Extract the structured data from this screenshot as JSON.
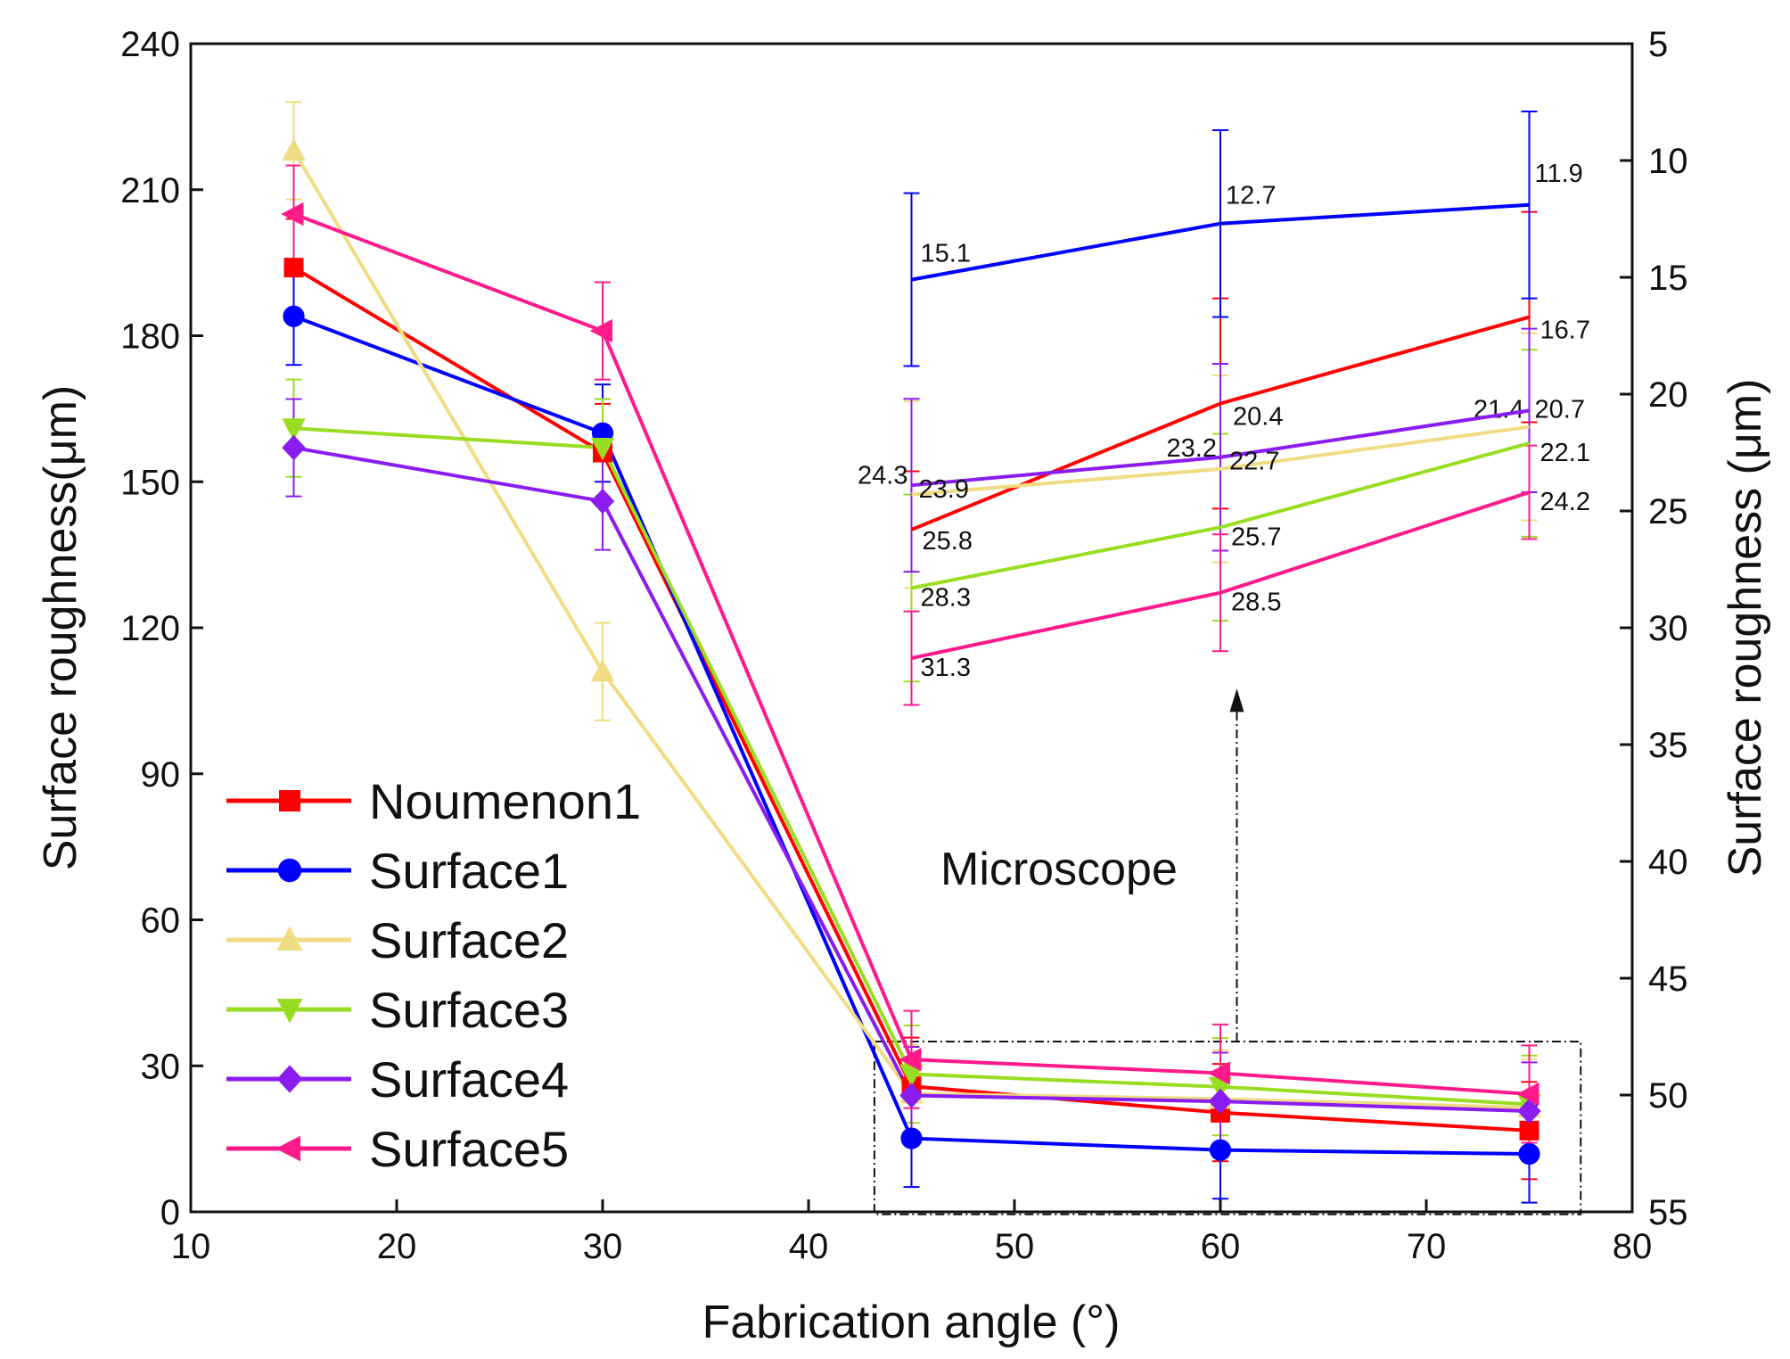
{
  "chart_data": {
    "type": "line",
    "xlabel": "Fabrication angle (°)",
    "ylabel": "Surface roughness(μm)",
    "ylabel_right": "Surface roughness (μm)",
    "xlim": [
      10,
      80
    ],
    "ylim": [
      0,
      240
    ],
    "ylim_right": [
      5,
      55
    ],
    "right_axis_inverted": true,
    "xticks": [
      "10",
      "20",
      "30",
      "40",
      "50",
      "60",
      "70",
      "80"
    ],
    "yticks": [
      "0",
      "30",
      "60",
      "90",
      "120",
      "150",
      "180",
      "210",
      "240"
    ],
    "yticks_right": [
      "5",
      "10",
      "15",
      "20",
      "25",
      "30",
      "35",
      "40",
      "45",
      "50",
      "55"
    ],
    "x": [
      15,
      30,
      45,
      60,
      75
    ],
    "legend_position": "bottom-left",
    "annotation": "Microscope",
    "inset_x": [
      45,
      60,
      75
    ],
    "series": [
      {
        "name": "Noumenon1",
        "color": "#ff0000",
        "marker": "square",
        "values": [
          194,
          156,
          25.8,
          20.4,
          16.7
        ],
        "errors": [
          10,
          10,
          10,
          10,
          10
        ],
        "inset_labels": [
          "25.8",
          "20.4",
          "16.7"
        ],
        "inset_errors": [
          2.5,
          4.5,
          4.5
        ]
      },
      {
        "name": "Surface1",
        "color": "#0000ff",
        "marker": "circle",
        "values": [
          184,
          160,
          15.1,
          12.7,
          11.9
        ],
        "errors": [
          10,
          10,
          10,
          10,
          10
        ],
        "inset_labels": [
          "15.1",
          "12.7",
          "11.9"
        ],
        "inset_errors": [
          3.7,
          4.0,
          4.0
        ]
      },
      {
        "name": "Surface2",
        "color": "#f0dc82",
        "marker": "triangle-up",
        "values": [
          218,
          111,
          24.3,
          23.2,
          21.4
        ],
        "errors": [
          10,
          10,
          10,
          10,
          10
        ],
        "inset_labels": [
          "24.3",
          "23.2",
          "21.4"
        ],
        "inset_errors": [
          4.0,
          4.0,
          4.0
        ]
      },
      {
        "name": "Surface3",
        "color": "#99dd22",
        "marker": "triangle-down",
        "values": [
          161,
          157,
          28.3,
          25.7,
          22.1
        ],
        "errors": [
          10,
          10,
          10,
          10,
          10
        ],
        "inset_labels": [
          "28.3",
          "25.7",
          "22.1"
        ],
        "inset_errors": [
          4.0,
          4.0,
          4.0
        ]
      },
      {
        "name": "Surface4",
        "color": "#8a1cf0",
        "marker": "diamond",
        "values": [
          157,
          146,
          23.9,
          22.7,
          20.7
        ],
        "errors": [
          10,
          10,
          10,
          10,
          10
        ],
        "inset_labels": [
          "23.9",
          "22.7",
          "20.7"
        ],
        "inset_errors": [
          3.7,
          4.0,
          3.5
        ]
      },
      {
        "name": "Surface5",
        "color": "#ff1a8c",
        "marker": "triangle-left",
        "values": [
          205,
          181,
          31.3,
          28.5,
          24.2
        ],
        "errors": [
          10,
          10,
          10,
          10,
          10
        ],
        "inset_labels": [
          "31.3",
          "28.5",
          "24.2"
        ],
        "inset_errors": [
          2.0,
          2.5,
          2.0
        ]
      }
    ]
  }
}
